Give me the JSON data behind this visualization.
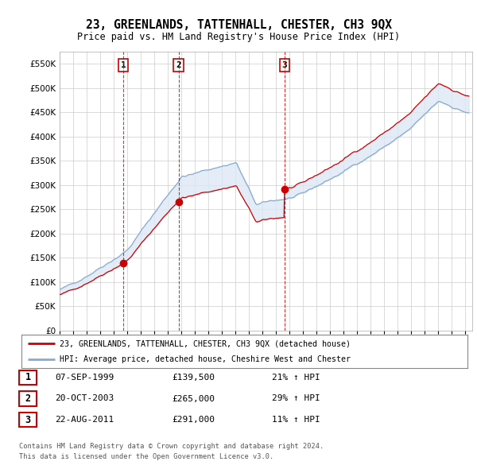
{
  "title": "23, GREENLANDS, TATTENHALL, CHESTER, CH3 9QX",
  "subtitle": "Price paid vs. HM Land Registry's House Price Index (HPI)",
  "legend_line1": "23, GREENLANDS, TATTENHALL, CHESTER, CH3 9QX (detached house)",
  "legend_line2": "HPI: Average price, detached house, Cheshire West and Chester",
  "transaction1_date": "07-SEP-1999",
  "transaction1_price": "£139,500",
  "transaction1_hpi": "21% ↑ HPI",
  "transaction1_price_val": 139500,
  "transaction1_year": 1999.708,
  "transaction2_date": "20-OCT-2003",
  "transaction2_price": "£265,000",
  "transaction2_hpi": "29% ↑ HPI",
  "transaction2_price_val": 265000,
  "transaction2_year": 2003.792,
  "transaction3_date": "22-AUG-2011",
  "transaction3_price": "£291,000",
  "transaction3_hpi": "11% ↑ HPI",
  "transaction3_price_val": 291000,
  "transaction3_year": 2011.625,
  "footer1": "Contains HM Land Registry data © Crown copyright and database right 2024.",
  "footer2": "This data is licensed under the Open Government Licence v3.0.",
  "price_color": "#cc0000",
  "hpi_color": "#88aacc",
  "fill_color": "#dce8f5",
  "ylim_min": 0,
  "ylim_max": 575000,
  "background_color": "#ffffff",
  "grid_color": "#cccccc"
}
